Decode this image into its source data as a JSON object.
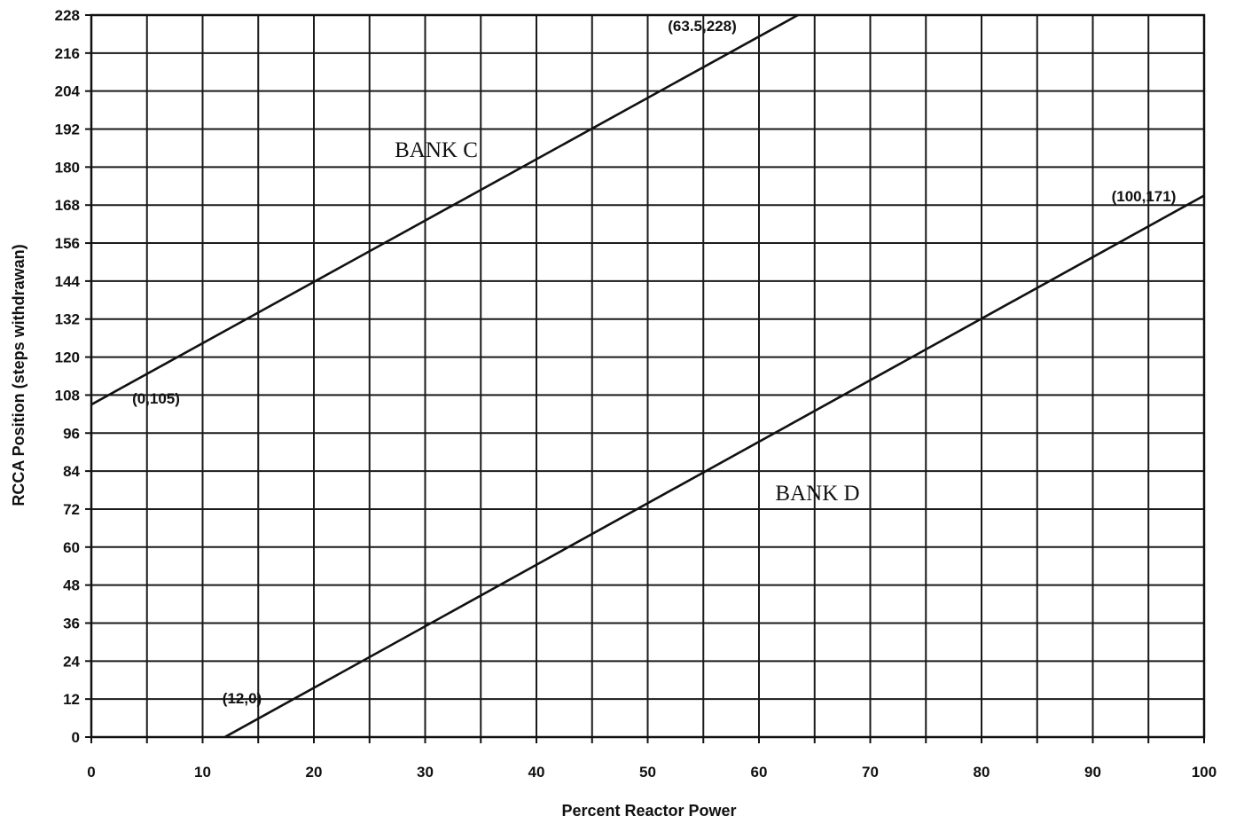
{
  "chart_data": {
    "type": "line",
    "title": "",
    "xlabel": "Percent Reactor Power",
    "ylabel": "RCCA Position (steps withdrawan)",
    "xlim": [
      0,
      100
    ],
    "ylim": [
      0,
      228
    ],
    "grid": true,
    "x_ticks": [
      0,
      10,
      20,
      30,
      40,
      50,
      60,
      70,
      80,
      90,
      100
    ],
    "y_ticks": [
      0,
      12,
      24,
      36,
      48,
      60,
      72,
      84,
      96,
      108,
      120,
      132,
      144,
      156,
      168,
      180,
      192,
      204,
      216,
      228
    ],
    "x_minor_step": 5,
    "series": [
      {
        "name": "BANK C",
        "x": [
          0,
          63.5
        ],
        "y": [
          105,
          228
        ]
      },
      {
        "name": "BANK D",
        "x": [
          12,
          100
        ],
        "y": [
          0,
          171
        ]
      }
    ],
    "point_labels": [
      {
        "text": "(0,105)",
        "x": 0,
        "y": 105
      },
      {
        "text": "(63.5,228)",
        "x": 63.5,
        "y": 228
      },
      {
        "text": "(100,171)",
        "x": 100,
        "y": 171
      },
      {
        "text": "(12,0)",
        "x": 12,
        "y": 0
      }
    ]
  }
}
